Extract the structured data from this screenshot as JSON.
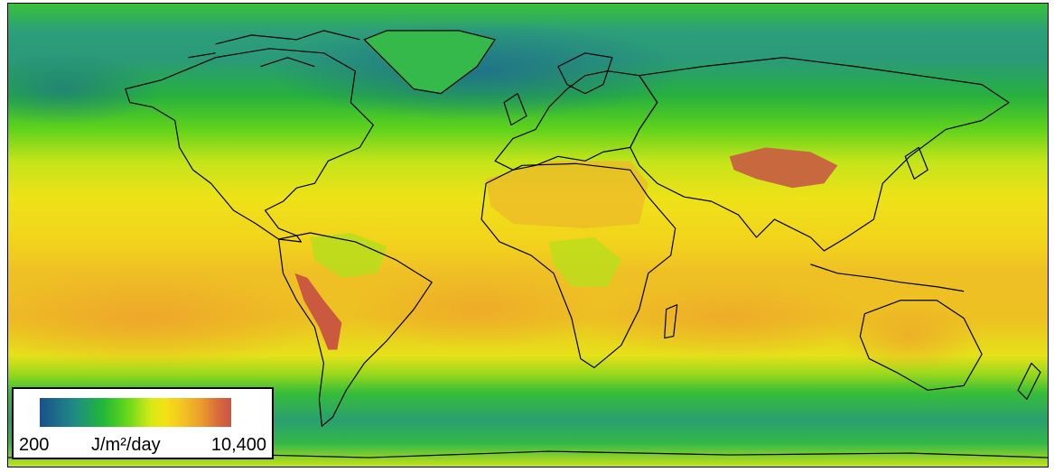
{
  "colors": {
    "scale": [
      "#1b4f8c",
      "#1f8a85",
      "#22b73a",
      "#60d61a",
      "#d6ea16",
      "#f5e014",
      "#f3c322",
      "#eb9e2c",
      "#d86b3b",
      "#c95445"
    ],
    "coastline": "#000000",
    "tibet": "#c8683f",
    "andes": "#c9593f"
  },
  "legend": {
    "min_label": "200",
    "max_label": "10,400",
    "unit_label": "J/m²/day",
    "min_value": 200,
    "max_value": 10400
  }
}
